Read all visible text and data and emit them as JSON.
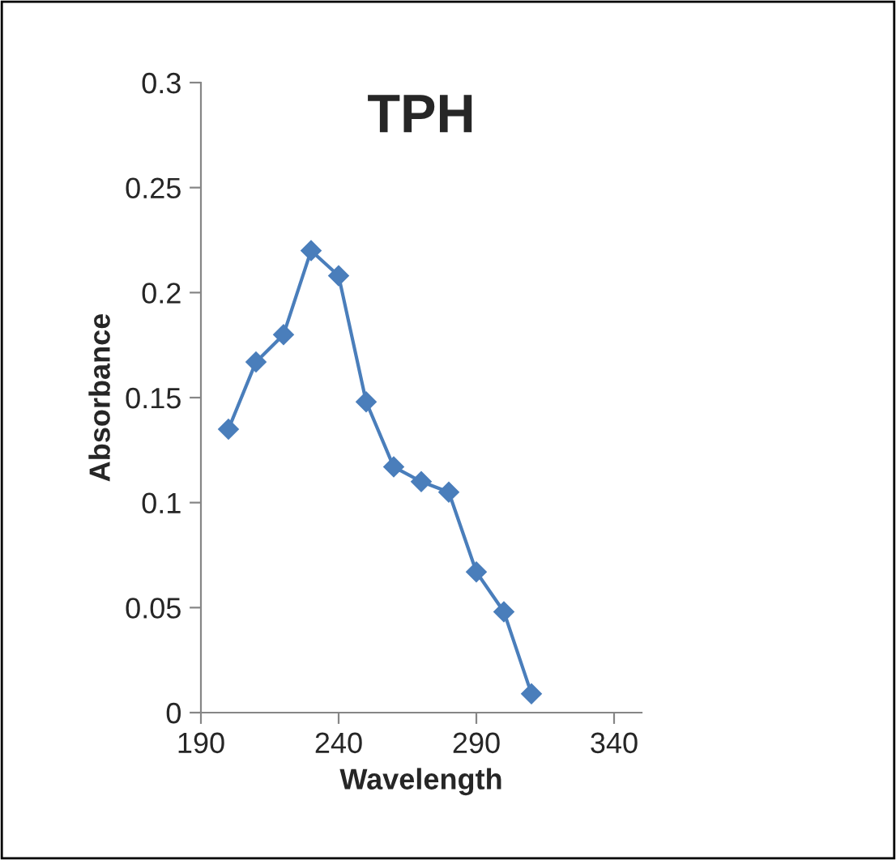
{
  "chart_data": {
    "type": "line",
    "title": "TPH",
    "xlabel": "Wavelength",
    "ylabel": "Absorbance",
    "x": [
      200,
      210,
      220,
      230,
      240,
      250,
      260,
      270,
      280,
      290,
      300,
      310
    ],
    "series": [
      {
        "color": "#4a7ebb",
        "values": [
          0.135,
          0.167,
          0.18,
          0.22,
          0.208,
          0.148,
          0.117,
          0.11,
          0.105,
          0.067,
          0.048,
          0.009
        ]
      }
    ],
    "xlim": [
      190,
      350
    ],
    "xticks": [
      190,
      240,
      290,
      340
    ],
    "ylim": [
      0,
      0.3
    ],
    "yticks": [
      0,
      0.05,
      0.1,
      0.15,
      0.2,
      0.25,
      0.3
    ],
    "grid": false,
    "legend": false,
    "marker": "diamond",
    "line_style": "solid"
  }
}
